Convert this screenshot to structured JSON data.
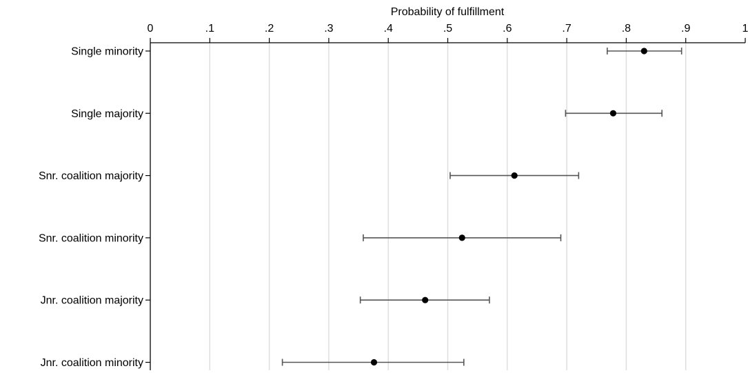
{
  "chart_data": {
    "type": "scatter",
    "title": "",
    "xlabel": "Probability of fulfillment",
    "xlabel_position": "top",
    "ylabel": "",
    "xlim": [
      0,
      1
    ],
    "xticks": [
      0,
      0.1,
      0.2,
      0.3,
      0.4,
      0.5,
      0.6,
      0.7,
      0.8,
      0.9,
      1
    ],
    "xtick_labels": [
      "0",
      ".1",
      ".2",
      ".3",
      ".4",
      ".5",
      ".6",
      ".7",
      ".8",
      ".9",
      "1"
    ],
    "grid": "vertical",
    "marker_color": "#000000",
    "errorbar_color": "#555555",
    "categories": [
      "Single minority",
      "Single majority",
      "Snr. coalition majority",
      "Snr. coalition minority",
      "Jnr. coalition majority",
      "Jnr. coalition minority"
    ],
    "values": [
      0.83,
      0.778,
      0.612,
      0.524,
      0.462,
      0.376
    ],
    "ci_low": [
      0.768,
      0.698,
      0.504,
      0.358,
      0.353,
      0.222
    ],
    "ci_high": [
      0.893,
      0.86,
      0.72,
      0.69,
      0.57,
      0.527
    ]
  }
}
